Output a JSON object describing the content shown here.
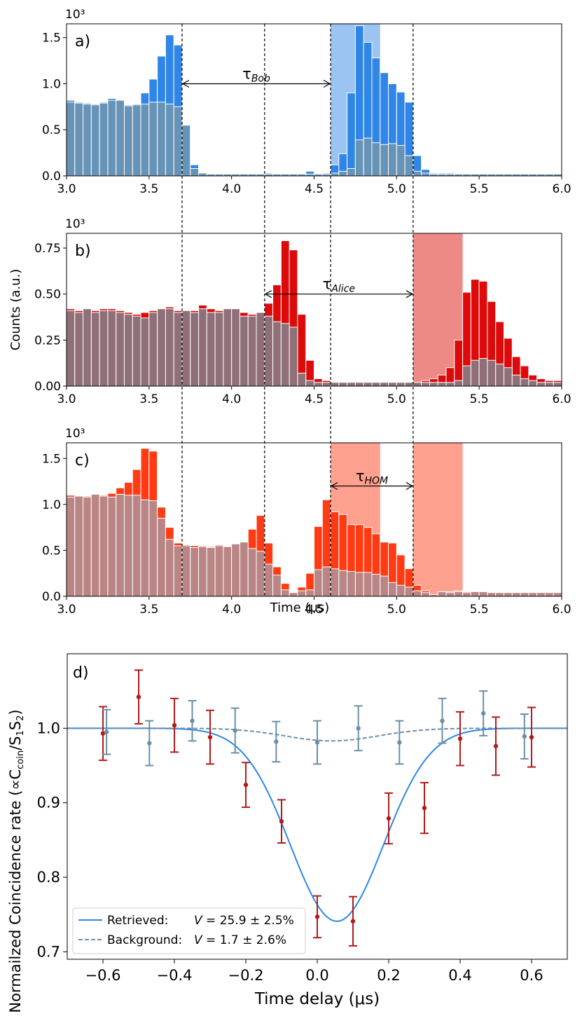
{
  "figure": {
    "ylabel_shared": "Counts (a.u.)",
    "xlabel_top": "Time (μs)",
    "mult": "10³"
  },
  "colors": {
    "bob": "#2f86e6",
    "bob_bg": "#6793b6",
    "bob_shade": "#9cc4f2",
    "alice": "#dc0a0a",
    "alice_bg": "#8f7079",
    "alice_shade": "#ee8a86",
    "hom": "#ff3b14",
    "hom_bg": "#b98585",
    "hom_shade": "#ffa18e",
    "fit": "#2f86e6",
    "bgfit": "#6d8fa8",
    "red_pts": "#b31a1a",
    "grey_pts": "#6a8fa6"
  },
  "chart_data": [
    {
      "type": "bar",
      "panel": "a)",
      "multiplier_label": "10³",
      "xlim": [
        3.0,
        6.0
      ],
      "ylim": [
        0,
        1.65
      ],
      "xticks": [
        3.0,
        3.5,
        4.0,
        4.5,
        5.0,
        5.5,
        6.0
      ],
      "yticks": [
        0.0,
        0.5,
        1.0,
        1.5
      ],
      "xtick_labels": [
        "3.0",
        "3.5",
        "4.0",
        "4.5",
        "5.0",
        "5.5",
        "6.0"
      ],
      "ytick_labels": [
        "0.0",
        "0.5",
        "1.0",
        "1.5"
      ],
      "bin_start": 3.0,
      "bin_width": 0.05,
      "series": [
        {
          "name": "signal",
          "values": [
            0.82,
            0.8,
            0.79,
            0.78,
            0.8,
            0.84,
            0.82,
            0.77,
            0.78,
            0.9,
            1.05,
            1.3,
            1.53,
            1.42,
            0.55,
            0.12,
            0.03,
            0.02,
            0.02,
            0.02,
            0.02,
            0.02,
            0.02,
            0.02,
            0.03,
            0.02,
            0.02,
            0.02,
            0.02,
            0.05,
            0.02,
            0.03,
            0.12,
            0.24,
            0.9,
            1.63,
            1.45,
            1.28,
            1.12,
            1.0,
            0.91,
            0.8,
            0.22,
            0.07,
            0.03,
            0.03,
            0.03,
            0.02,
            0.02,
            0.02,
            0.02,
            0.02,
            0.02,
            0.02,
            0.02,
            0.02,
            0.02,
            0.02,
            0.02,
            0.02
          ]
        },
        {
          "name": "background",
          "values": [
            0.8,
            0.79,
            0.78,
            0.77,
            0.79,
            0.82,
            0.82,
            0.76,
            0.77,
            0.78,
            0.8,
            0.8,
            0.78,
            0.75,
            0.55,
            0.08,
            0.03,
            0.02,
            0.02,
            0.02,
            0.02,
            0.02,
            0.02,
            0.02,
            0.02,
            0.02,
            0.02,
            0.02,
            0.02,
            0.02,
            0.02,
            0.02,
            0.03,
            0.05,
            0.08,
            0.39,
            0.41,
            0.36,
            0.34,
            0.35,
            0.33,
            0.22,
            0.05,
            0.03,
            0.02,
            0.02,
            0.02,
            0.02,
            0.02,
            0.02,
            0.02,
            0.02,
            0.02,
            0.02,
            0.02,
            0.02,
            0.02,
            0.02,
            0.02,
            0.02
          ]
        }
      ],
      "shaded_windows": [
        [
          4.6,
          4.9
        ]
      ],
      "annotation": {
        "base": "τ",
        "sub": "Bob",
        "from": 3.7,
        "to": 4.6,
        "y": 1.0
      }
    },
    {
      "type": "bar",
      "panel": "b)",
      "multiplier_label": "10³",
      "xlim": [
        3.0,
        6.0
      ],
      "ylim": [
        0,
        0.83
      ],
      "xticks": [
        3.0,
        3.5,
        4.0,
        4.5,
        5.0,
        5.5,
        6.0
      ],
      "yticks": [
        0.0,
        0.25,
        0.5,
        0.75
      ],
      "xtick_labels": [
        "3.0",
        "3.5",
        "4.0",
        "4.5",
        "5.0",
        "5.5",
        "6.0"
      ],
      "ytick_labels": [
        "0.00",
        "0.25",
        "0.50",
        "0.75"
      ],
      "bin_start": 3.0,
      "bin_width": 0.05,
      "series": [
        {
          "name": "signal",
          "values": [
            0.42,
            0.41,
            0.4,
            0.41,
            0.42,
            0.42,
            0.41,
            0.4,
            0.39,
            0.4,
            0.41,
            0.42,
            0.43,
            0.41,
            0.41,
            0.41,
            0.44,
            0.42,
            0.41,
            0.4,
            0.41,
            0.4,
            0.39,
            0.4,
            0.45,
            0.55,
            0.79,
            0.74,
            0.39,
            0.14,
            0.04,
            0.03,
            0.02,
            0.02,
            0.02,
            0.02,
            0.02,
            0.02,
            0.02,
            0.02,
            0.02,
            0.02,
            0.02,
            0.03,
            0.04,
            0.06,
            0.1,
            0.25,
            0.51,
            0.58,
            0.57,
            0.46,
            0.35,
            0.26,
            0.16,
            0.11,
            0.06,
            0.04,
            0.03,
            0.03
          ]
        },
        {
          "name": "background",
          "values": [
            0.41,
            0.4,
            0.42,
            0.4,
            0.41,
            0.41,
            0.4,
            0.39,
            0.38,
            0.37,
            0.4,
            0.42,
            0.42,
            0.4,
            0.41,
            0.4,
            0.42,
            0.4,
            0.4,
            0.42,
            0.42,
            0.38,
            0.38,
            0.4,
            0.38,
            0.35,
            0.34,
            0.32,
            0.07,
            0.03,
            0.02,
            0.02,
            0.02,
            0.02,
            0.02,
            0.02,
            0.02,
            0.02,
            0.02,
            0.02,
            0.02,
            0.02,
            0.02,
            0.02,
            0.02,
            0.02,
            0.02,
            0.03,
            0.11,
            0.14,
            0.15,
            0.14,
            0.12,
            0.1,
            0.06,
            0.04,
            0.03,
            0.02,
            0.02,
            0.02
          ]
        }
      ],
      "shaded_windows": [
        [
          5.1,
          5.4
        ]
      ],
      "annotation": {
        "base": "τ",
        "sub": "Alice",
        "from": 4.2,
        "to": 5.1,
        "y": 0.5
      }
    },
    {
      "type": "bar",
      "panel": "c)",
      "multiplier_label": "10³",
      "xlim": [
        3.0,
        6.0
      ],
      "ylim": [
        0,
        1.67
      ],
      "xticks": [
        3.0,
        3.5,
        4.0,
        4.5,
        5.0,
        5.5,
        6.0
      ],
      "yticks": [
        0.0,
        0.5,
        1.0,
        1.5
      ],
      "xtick_labels": [
        "3.0",
        "3.5",
        "4.0",
        "4.5",
        "5.0",
        "5.5",
        "6.0"
      ],
      "ytick_labels": [
        "0.0",
        "0.5",
        "1.0",
        "1.5"
      ],
      "xlabel": "Time (μs)",
      "bin_start": 3.0,
      "bin_width": 0.05,
      "series": [
        {
          "name": "signal",
          "values": [
            1.1,
            1.09,
            1.09,
            1.1,
            1.1,
            1.12,
            1.18,
            1.24,
            1.38,
            1.61,
            1.58,
            0.97,
            0.75,
            0.58,
            0.56,
            0.55,
            0.55,
            0.54,
            0.56,
            0.54,
            0.55,
            0.58,
            0.73,
            0.88,
            0.58,
            0.32,
            0.14,
            0.04,
            0.1,
            0.25,
            0.76,
            1.05,
            0.92,
            0.89,
            0.78,
            0.78,
            0.75,
            0.68,
            0.59,
            0.58,
            0.45,
            0.3,
            0.12,
            0.06,
            0.02,
            0.05,
            0.05,
            0.06,
            0.05,
            0.05,
            0.05,
            0.04,
            0.04,
            0.04,
            0.04,
            0.04,
            0.04,
            0.04,
            0.04,
            0.04
          ]
        },
        {
          "name": "background",
          "values": [
            1.08,
            1.09,
            1.08,
            1.11,
            1.09,
            1.08,
            1.11,
            1.1,
            1.1,
            1.05,
            1.04,
            0.85,
            0.62,
            0.55,
            0.55,
            0.53,
            0.54,
            0.53,
            0.55,
            0.54,
            0.57,
            0.59,
            0.52,
            0.49,
            0.35,
            0.23,
            0.07,
            0.04,
            0.06,
            0.07,
            0.29,
            0.32,
            0.3,
            0.28,
            0.27,
            0.26,
            0.26,
            0.24,
            0.22,
            0.15,
            0.12,
            0.1,
            0.06,
            0.04,
            0.02,
            0.05,
            0.04,
            0.05,
            0.04,
            0.05,
            0.05,
            0.04,
            0.04,
            0.04,
            0.04,
            0.04,
            0.04,
            0.04,
            0.04,
            0.04
          ]
        }
      ],
      "shaded_windows": [
        [
          4.6,
          4.9
        ],
        [
          5.1,
          5.4
        ]
      ],
      "annotation": {
        "base": "τ",
        "sub": "HOM",
        "from": 4.6,
        "to": 5.1,
        "y": 1.2
      }
    },
    {
      "type": "scatter",
      "panel": "d)",
      "xlim": [
        -0.7,
        0.7
      ],
      "ylim": [
        0.69,
        1.1
      ],
      "xticks": [
        -0.6,
        -0.4,
        -0.2,
        0.0,
        0.2,
        0.4,
        0.6
      ],
      "yticks": [
        0.7,
        0.8,
        0.9,
        1.0
      ],
      "xtick_labels": [
        "−0.6",
        "−0.4",
        "−0.2",
        "0.0",
        "0.2",
        "0.4",
        "0.6"
      ],
      "ytick_labels": [
        "0.7",
        "0.8",
        "0.9",
        "1.0"
      ],
      "xlabel": "Time delay (μs)",
      "ylabel": "Normailzed Coincidence rate (∝C",
      "ylabel_sub1": "coin",
      "ylabel_mid": "/S",
      "ylabel_sub2": "1",
      "ylabel_mid2": "S",
      "ylabel_sub3": "2",
      "ylabel_end": ")",
      "series": [
        {
          "name": "retrieved_points",
          "x": [
            -0.6,
            -0.5,
            -0.4,
            -0.3,
            -0.2,
            -0.1,
            0.0,
            0.1,
            0.2,
            0.3,
            0.4,
            0.5,
            0.6
          ],
          "y": [
            0.993,
            1.042,
            1.004,
            0.988,
            0.924,
            0.875,
            0.747,
            0.741,
            0.879,
            0.893,
            0.986,
            0.976,
            0.988
          ],
          "err": [
            0.036,
            0.036,
            0.036,
            0.036,
            0.03,
            0.029,
            0.028,
            0.033,
            0.034,
            0.034,
            0.036,
            0.039,
            0.04
          ]
        },
        {
          "name": "background_points",
          "x": [
            -0.59,
            -0.47,
            -0.35,
            -0.23,
            -0.115,
            0.0,
            0.115,
            0.23,
            0.35,
            0.465,
            0.58
          ],
          "y": [
            0.995,
            0.98,
            1.01,
            0.997,
            0.982,
            0.981,
            1.0,
            0.981,
            1.01,
            1.02,
            0.989
          ],
          "err": [
            0.03,
            0.03,
            0.027,
            0.03,
            0.027,
            0.029,
            0.03,
            0.029,
            0.03,
            0.03,
            0.03
          ]
        }
      ],
      "fits": [
        {
          "name": "Retrieved",
          "visibility": 0.259,
          "center": 0.055,
          "sigma": 0.13
        },
        {
          "name": "Background",
          "visibility": 0.017,
          "center": 0.04,
          "sigma": 0.13
        }
      ],
      "legend": [
        {
          "label": "Retrieved:",
          "V": "V",
          "value": " = 25.9 ± 2.5%"
        },
        {
          "label": "Background:",
          "V": "V",
          "value": " =   1.7 ± 2.6%"
        }
      ],
      "legend_position": "lower-left"
    }
  ]
}
